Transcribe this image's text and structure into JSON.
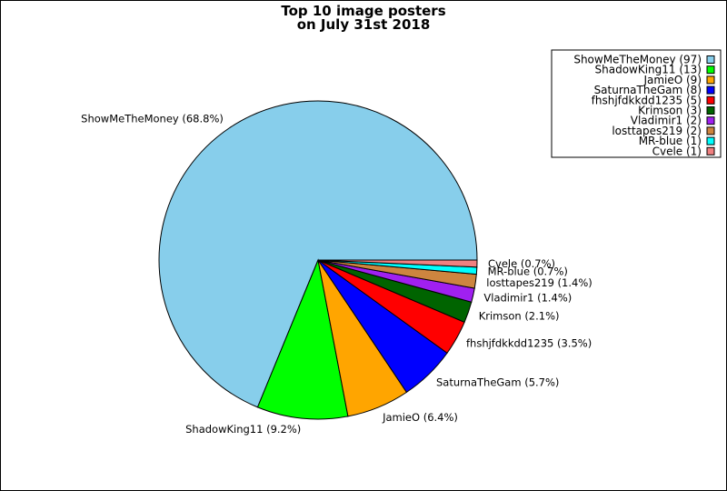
{
  "chart_data": {
    "type": "pie",
    "title": [
      "Top 10 image posters",
      "on July 31st 2018"
    ],
    "slices": [
      {
        "name": "ShowMeTheMoney",
        "count": 97,
        "percent": 68.8,
        "label": "ShowMeTheMoney (68.8%)",
        "legend": "ShowMeTheMoney (97)",
        "color": "#87ceeb"
      },
      {
        "name": "ShadowKing11",
        "count": 13,
        "percent": 9.2,
        "label": "ShadowKing11 (9.2%)",
        "legend": "ShadowKing11 (13)",
        "color": "#00ff00"
      },
      {
        "name": "JamieO",
        "count": 9,
        "percent": 6.4,
        "label": "JamieO (6.4%)",
        "legend": "JamieO (9)",
        "color": "#ffa500"
      },
      {
        "name": "SaturnaTheGam",
        "count": 8,
        "percent": 5.7,
        "label": "SaturnaTheGam (5.7%)",
        "legend": "SaturnaTheGam (8)",
        "color": "#0000ff"
      },
      {
        "name": "fhshjfdkkdd1235",
        "count": 5,
        "percent": 3.5,
        "label": "fhshjfdkkdd1235 (3.5%)",
        "legend": "fhshjfdkkdd1235 (5)",
        "color": "#ff0000"
      },
      {
        "name": "Krimson",
        "count": 3,
        "percent": 2.1,
        "label": "Krimson (2.1%)",
        "legend": "Krimson (3)",
        "color": "#006400"
      },
      {
        "name": "Vladimir1",
        "count": 2,
        "percent": 1.4,
        "label": "Vladimir1 (1.4%)",
        "legend": "Vladimir1 (2)",
        "color": "#a020f0"
      },
      {
        "name": "losttapes219",
        "count": 2,
        "percent": 1.4,
        "label": "losttapes219 (1.4%)",
        "legend": "losttapes219 (2)",
        "color": "#cd853f"
      },
      {
        "name": "MR-blue",
        "count": 1,
        "percent": 0.7,
        "label": "MR-blue (0.7%)",
        "legend": "MR-blue (1)",
        "color": "#00ffff"
      },
      {
        "name": "Cvele",
        "count": 1,
        "percent": 0.7,
        "label": "Cvele (0.7%)",
        "legend": "Cvele (1)",
        "color": "#f08080"
      }
    ],
    "legend_position": "top-right"
  }
}
